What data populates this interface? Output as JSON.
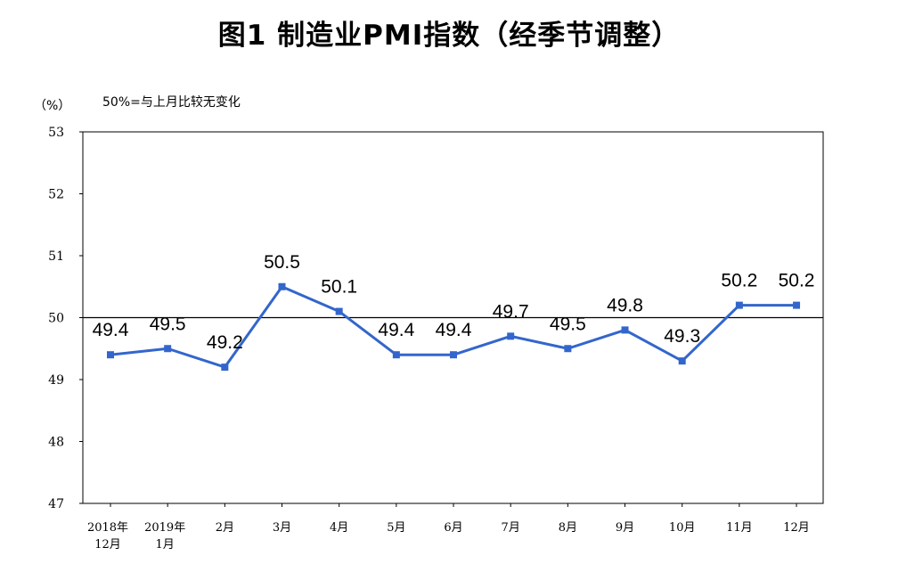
{
  "title": "图1  制造业PMI指数（经季节调整）",
  "chart_data": {
    "type": "line",
    "title": "图1  制造业PMI指数（经季节调整）",
    "y_unit_label": "（%）",
    "reference_note": "50%=与上月比较无变化",
    "reference_line": 50,
    "ylim": [
      47,
      53
    ],
    "yticks": [
      47,
      48,
      49,
      50,
      51,
      52,
      53
    ],
    "categories": [
      [
        "2018年",
        "12月"
      ],
      [
        "2019年",
        "1月"
      ],
      [
        "2月"
      ],
      [
        "3月"
      ],
      [
        "4月"
      ],
      [
        "5月"
      ],
      [
        "6月"
      ],
      [
        "7月"
      ],
      [
        "8月"
      ],
      [
        "9月"
      ],
      [
        "10月"
      ],
      [
        "11月"
      ],
      [
        "12月"
      ]
    ],
    "values": [
      49.4,
      49.5,
      49.2,
      50.5,
      50.1,
      49.4,
      49.4,
      49.7,
      49.5,
      49.8,
      49.3,
      50.2,
      50.2
    ],
    "series_color": "#3366cc",
    "grid": false,
    "data_labels": true
  }
}
